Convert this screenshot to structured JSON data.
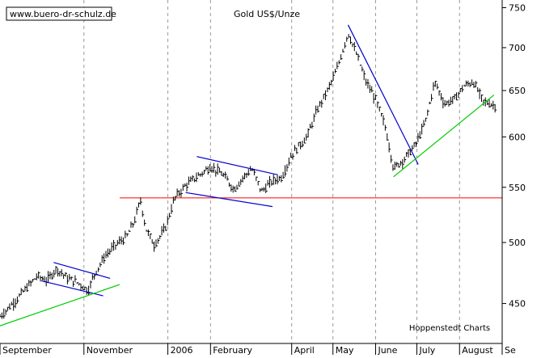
{
  "chart_data": {
    "type": "ohlc",
    "title": "Gold US$/Unze",
    "watermark": "www.buero-dr-schulz.de",
    "source": "Hoppenstedt Charts",
    "y_scale": "log",
    "y_axis_position": "right",
    "ylim": [
      420,
      760
    ],
    "xlim": [
      "2005-09-01",
      "2006-09-01"
    ],
    "y_ticks": [
      450,
      500,
      550,
      600,
      650,
      700,
      750
    ],
    "x_ticks": [
      {
        "label": "September",
        "date": "2005-09-01"
      },
      {
        "label": "November",
        "date": "2005-11-01"
      },
      {
        "label": "2006",
        "date": "2006-01-01"
      },
      {
        "label": "February",
        "date": "2006-02-01"
      },
      {
        "label": "April",
        "date": "2006-04-01"
      },
      {
        "label": "May",
        "date": "2006-05-01"
      },
      {
        "label": "June",
        "date": "2006-06-01"
      },
      {
        "label": "July",
        "date": "2006-07-01"
      },
      {
        "label": "August",
        "date": "2006-08-01"
      },
      {
        "label": "Se",
        "date": "2006-09-01"
      }
    ],
    "grid": {
      "vertical": true,
      "style": "dashed",
      "horizontal": false
    },
    "colors": {
      "bars": "#000000",
      "support": "#ff0000",
      "channel": "#0000cc",
      "uptrend": "#00cc00"
    },
    "price_path": [
      [
        "2005-09-01",
        440
      ],
      [
        "2005-09-12",
        452
      ],
      [
        "2005-09-20",
        462
      ],
      [
        "2005-09-28",
        472
      ],
      [
        "2005-10-05",
        468
      ],
      [
        "2005-10-12",
        478
      ],
      [
        "2005-10-20",
        470
      ],
      [
        "2005-10-28",
        466
      ],
      [
        "2005-11-04",
        460
      ],
      [
        "2005-11-08",
        472
      ],
      [
        "2005-11-16",
        488
      ],
      [
        "2005-11-24",
        498
      ],
      [
        "2005-12-02",
        505
      ],
      [
        "2005-12-08",
        520
      ],
      [
        "2005-12-12",
        538
      ],
      [
        "2005-12-16",
        512
      ],
      [
        "2005-12-22",
        498
      ],
      [
        "2005-12-30",
        512
      ],
      [
        "2006-01-06",
        540
      ],
      [
        "2006-01-14",
        552
      ],
      [
        "2006-01-22",
        560
      ],
      [
        "2006-02-01",
        570
      ],
      [
        "2006-02-10",
        562
      ],
      [
        "2006-02-18",
        548
      ],
      [
        "2006-02-25",
        560
      ],
      [
        "2006-03-03",
        568
      ],
      [
        "2006-03-10",
        546
      ],
      [
        "2006-03-17",
        555
      ],
      [
        "2006-03-25",
        560
      ],
      [
        "2006-04-01",
        582
      ],
      [
        "2006-04-12",
        600
      ],
      [
        "2006-04-20",
        630
      ],
      [
        "2006-04-27",
        650
      ],
      [
        "2006-05-04",
        675
      ],
      [
        "2006-05-12",
        718
      ],
      [
        "2006-05-18",
        692
      ],
      [
        "2006-05-25",
        660
      ],
      [
        "2006-06-01",
        640
      ],
      [
        "2006-06-08",
        610
      ],
      [
        "2006-06-14",
        568
      ],
      [
        "2006-06-22",
        578
      ],
      [
        "2006-06-30",
        592
      ],
      [
        "2006-07-07",
        615
      ],
      [
        "2006-07-14",
        660
      ],
      [
        "2006-07-21",
        635
      ],
      [
        "2006-07-28",
        640
      ],
      [
        "2006-08-04",
        655
      ],
      [
        "2006-08-11",
        660
      ],
      [
        "2006-08-18",
        638
      ],
      [
        "2006-08-24",
        635
      ],
      [
        "2006-08-28",
        632
      ]
    ],
    "support_line": {
      "value": 540,
      "from": "2005-11-27",
      "to": "2006-09-01"
    },
    "trend_lines": [
      {
        "name": "channel-1-upper",
        "color": "channel",
        "points": [
          [
            "2005-10-10",
            483
          ],
          [
            "2005-11-20",
            470
          ]
        ]
      },
      {
        "name": "channel-1-lower",
        "color": "channel",
        "points": [
          [
            "2005-10-01",
            468
          ],
          [
            "2005-11-15",
            456
          ]
        ]
      },
      {
        "name": "channel-2-upper",
        "color": "channel",
        "points": [
          [
            "2006-01-22",
            580
          ],
          [
            "2006-03-22",
            562
          ]
        ]
      },
      {
        "name": "channel-2-lower",
        "color": "channel",
        "points": [
          [
            "2006-01-14",
            545
          ],
          [
            "2006-03-18",
            532
          ]
        ]
      },
      {
        "name": "downtrend",
        "color": "channel",
        "points": [
          [
            "2006-05-12",
            728
          ],
          [
            "2006-07-02",
            572
          ]
        ]
      },
      {
        "name": "uptrend-1",
        "color": "uptrend",
        "points": [
          [
            "2005-09-01",
            433
          ],
          [
            "2005-11-27",
            465
          ]
        ]
      },
      {
        "name": "uptrend-2",
        "color": "uptrend",
        "points": [
          [
            "2006-06-14",
            560
          ],
          [
            "2006-08-26",
            645
          ]
        ]
      }
    ]
  }
}
